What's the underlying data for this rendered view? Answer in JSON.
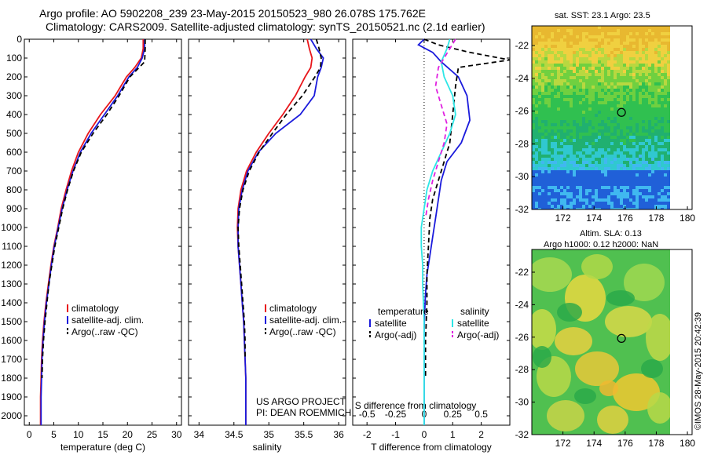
{
  "title_line1": "Argo profile: AO 5902208_239 23-May-2015 20150523_980 26.078S 175.762E",
  "title_line2": "Climatology: CARS2009. Satellite-adjusted climatology: synTS_20150521.nc (2.1d earlier)",
  "project_line1": "US ARGO PROJECT",
  "project_line2": "PI: DEAN ROEMMICH",
  "timestamp": "©IMOS 28-May-2015 20:42:39",
  "map_top_title": "sat. SST: 23.1  Argo: 23.5",
  "map_bottom_title1": "Altim. SLA: 0.13",
  "map_bottom_title2": "Argo h1000: 0.12 h2000: NaN",
  "colors": {
    "climatology": "#e8161b",
    "satellite": "#1a1adc",
    "argo": "#000000",
    "cyan": "#2de6e6",
    "magenta": "#e020e0"
  },
  "chart_data": [
    {
      "type": "line",
      "name": "temperature",
      "xlabel": "temperature (deg C)",
      "ylabel": "",
      "xlim": [
        -1,
        31
      ],
      "ylim": [
        0,
        2050
      ],
      "xticks": [
        0,
        5,
        10,
        15,
        20,
        25,
        30
      ],
      "yticks": [
        0,
        100,
        200,
        300,
        400,
        500,
        600,
        700,
        800,
        900,
        1000,
        1100,
        1200,
        1300,
        1400,
        1500,
        1600,
        1700,
        1800,
        1900,
        2000
      ],
      "legend": [
        "climatology",
        "satellite-adj. clim.",
        "Argo(..raw -QC)"
      ],
      "series": [
        {
          "name": "climatology",
          "color": "#e8161b",
          "style": "solid",
          "x": [
            23.2,
            23.2,
            22.8,
            21.5,
            19.8,
            17.5,
            14.5,
            12.0,
            10.0,
            8.6,
            7.5,
            6.5,
            5.8,
            5.0,
            4.4,
            3.9,
            3.4,
            3.0,
            2.7,
            2.5,
            2.4,
            2.3,
            2.3,
            2.3
          ],
          "y": [
            0,
            50,
            100,
            150,
            200,
            300,
            400,
            500,
            600,
            700,
            800,
            900,
            1000,
            1100,
            1200,
            1300,
            1400,
            1500,
            1600,
            1700,
            1800,
            1900,
            2000,
            2050
          ]
        },
        {
          "name": "satellite-adj. clim.",
          "color": "#1a1adc",
          "style": "solid",
          "x": [
            23.5,
            23.5,
            23.0,
            22.0,
            20.3,
            18.0,
            15.3,
            12.6,
            10.4,
            8.9,
            7.7,
            6.7,
            5.9,
            5.1,
            4.5,
            4.0,
            3.5,
            3.1,
            2.8,
            2.6,
            2.5,
            2.4,
            2.4,
            2.4
          ],
          "y": [
            0,
            50,
            100,
            150,
            200,
            300,
            400,
            500,
            600,
            700,
            800,
            900,
            1000,
            1100,
            1200,
            1300,
            1400,
            1500,
            1600,
            1700,
            1800,
            1900,
            2000,
            2050
          ]
        },
        {
          "name": "Argo(..raw -QC)",
          "color": "#000000",
          "style": "dash",
          "x": [
            23.6,
            23.6,
            23.5,
            22.0,
            20.5,
            18.3,
            15.8,
            13.0,
            10.6,
            9.0,
            7.8,
            6.8,
            6.0,
            5.2,
            4.6,
            4.0,
            3.6,
            3.2,
            2.9,
            2.7,
            2.6
          ],
          "y": [
            0,
            50,
            120,
            160,
            200,
            300,
            400,
            500,
            600,
            700,
            800,
            900,
            1000,
            1100,
            1200,
            1300,
            1400,
            1500,
            1600,
            1700,
            1800
          ]
        }
      ]
    },
    {
      "type": "line",
      "name": "salinity",
      "xlabel": "salinity",
      "ylabel": "",
      "xlim": [
        33.85,
        36.1
      ],
      "ylim": [
        0,
        2050
      ],
      "xticks": [
        34,
        34.5,
        35,
        35.5,
        36
      ],
      "xticklabels": [
        "34",
        "34.5",
        "35",
        "35.5",
        "36"
      ],
      "legend": [
        "climatology",
        "satellite-adj. clim.",
        "Argo(..raw -QC)"
      ],
      "series": [
        {
          "name": "climatology",
          "color": "#e8161b",
          "style": "solid",
          "x": [
            35.55,
            35.58,
            35.62,
            35.6,
            35.52,
            35.38,
            35.2,
            35.0,
            34.82,
            34.68,
            34.6,
            34.56,
            34.55,
            34.56,
            34.58,
            34.6,
            34.62,
            34.64,
            34.65,
            34.66,
            34.67,
            34.67,
            34.67
          ],
          "y": [
            0,
            50,
            100,
            150,
            200,
            300,
            400,
            500,
            600,
            700,
            800,
            900,
            1000,
            1100,
            1200,
            1300,
            1400,
            1500,
            1600,
            1700,
            1800,
            1900,
            2050
          ]
        },
        {
          "name": "satellite-adj. clim.",
          "color": "#1a1adc",
          "style": "solid",
          "x": [
            35.6,
            35.68,
            35.78,
            35.75,
            35.7,
            35.65,
            35.45,
            35.1,
            34.85,
            34.7,
            34.62,
            34.57,
            34.56,
            34.56,
            34.58,
            34.6,
            34.62,
            34.64,
            34.65,
            34.66,
            34.67,
            34.67,
            34.67
          ],
          "y": [
            0,
            50,
            100,
            150,
            200,
            300,
            400,
            500,
            600,
            700,
            800,
            900,
            1000,
            1100,
            1200,
            1300,
            1400,
            1500,
            1600,
            1700,
            1800,
            1900,
            2050
          ]
        },
        {
          "name": "Argo(..raw -QC)",
          "color": "#000000",
          "style": "dash",
          "x": [
            35.68,
            35.72,
            35.75,
            35.74,
            35.66,
            35.48,
            35.25,
            35.05,
            34.86,
            34.72,
            34.63,
            34.58,
            34.56,
            34.57,
            34.59,
            34.61,
            34.63,
            34.65,
            34.66,
            34.66
          ],
          "y": [
            0,
            50,
            100,
            150,
            200,
            300,
            400,
            500,
            600,
            700,
            800,
            900,
            1000,
            1100,
            1200,
            1300,
            1400,
            1500,
            1600,
            1700
          ]
        }
      ]
    },
    {
      "type": "line",
      "name": "difference",
      "xlabel": "T difference from climatology",
      "top_xlabel": "S difference from climatology",
      "xlim": [
        -2.5,
        3
      ],
      "ylim": [
        0,
        2050
      ],
      "xticks": [
        -2,
        -1,
        0,
        1,
        2
      ],
      "top_xticks": [
        -0.5,
        -0.25,
        0,
        0.25,
        0.5
      ],
      "top_xticklabels": [
        "-0.5",
        "-0.25",
        "0",
        "0.25",
        "0.5"
      ],
      "legend_temperature_header": "temperature",
      "legend_salinity_header": "salinity",
      "legend": [
        "satellite",
        "Argo(-adj)",
        "satellite",
        "Argo(-adj)"
      ],
      "series": [
        {
          "name": "T satellite",
          "color": "#1a1adc",
          "style": "solid",
          "x": [
            0.0,
            -0.2,
            0.3,
            0.6,
            1.2,
            1.5,
            1.6,
            1.3,
            0.8,
            0.6,
            0.5,
            0.4,
            0.3,
            0.2,
            0.1,
            0.05,
            0.02,
            0.0,
            0.0,
            0.0,
            0.0
          ],
          "y": [
            0,
            30,
            70,
            120,
            200,
            300,
            430,
            550,
            650,
            750,
            850,
            950,
            1050,
            1150,
            1250,
            1350,
            1450,
            1550,
            1700,
            1850,
            2050
          ]
        },
        {
          "name": "T Argo(-adj)",
          "color": "#000000",
          "style": "dash",
          "x": [
            0.0,
            0.5,
            1.6,
            3.0,
            1.2,
            1.1,
            1.0,
            0.9,
            0.7,
            0.5,
            0.3,
            0.2,
            0.15,
            0.1,
            0.1,
            0.05,
            0.05
          ],
          "y": [
            0,
            30,
            70,
            110,
            150,
            250,
            400,
            550,
            650,
            750,
            850,
            950,
            1100,
            1250,
            1400,
            1600,
            1800
          ]
        },
        {
          "name": "S satellite",
          "color": "#2de6e6",
          "style": "solid",
          "x": [
            0.9,
            0.8,
            0.6,
            0.7,
            1.0,
            1.1,
            0.9,
            0.6,
            0.3,
            0.1,
            0.0,
            -0.1,
            -0.1,
            -0.05,
            -0.05,
            0.0,
            0.0,
            0.0,
            0.0
          ],
          "y": [
            0,
            50,
            120,
            200,
            300,
            400,
            500,
            600,
            700,
            800,
            900,
            1000,
            1100,
            1200,
            1300,
            1500,
            1700,
            1900,
            2050
          ]
        },
        {
          "name": "S Argo(-adj)",
          "color": "#e020e0",
          "style": "dash",
          "x": [
            1.1,
            0.9,
            0.5,
            0.4,
            0.6,
            0.8,
            0.7,
            0.5,
            0.3,
            0.15,
            0.05
          ],
          "y": [
            0,
            50,
            150,
            250,
            350,
            450,
            550,
            650,
            750,
            850,
            950
          ]
        }
      ]
    },
    {
      "type": "heatmap",
      "name": "sat-sst-map",
      "title": "sat. SST: 23.1  Argo: 23.5",
      "xlim": [
        170,
        180.3
      ],
      "ylim": [
        -32,
        -20.8
      ],
      "xticks": [
        172,
        174,
        176,
        178,
        180
      ],
      "yticks": [
        -22,
        -24,
        -26,
        -28,
        -30,
        -32
      ],
      "marker": {
        "x": 175.762,
        "y": -26.078
      }
    },
    {
      "type": "heatmap",
      "name": "sla-map",
      "title": "Altim. SLA: 0.13",
      "xlim": [
        170,
        180.3
      ],
      "ylim": [
        -32,
        -20.6
      ],
      "xticks": [
        172,
        174,
        176,
        178,
        180
      ],
      "yticks": [
        -22,
        -24,
        -26,
        -28,
        -30,
        -32
      ],
      "marker": {
        "x": 175.762,
        "y": -26.078
      }
    }
  ]
}
